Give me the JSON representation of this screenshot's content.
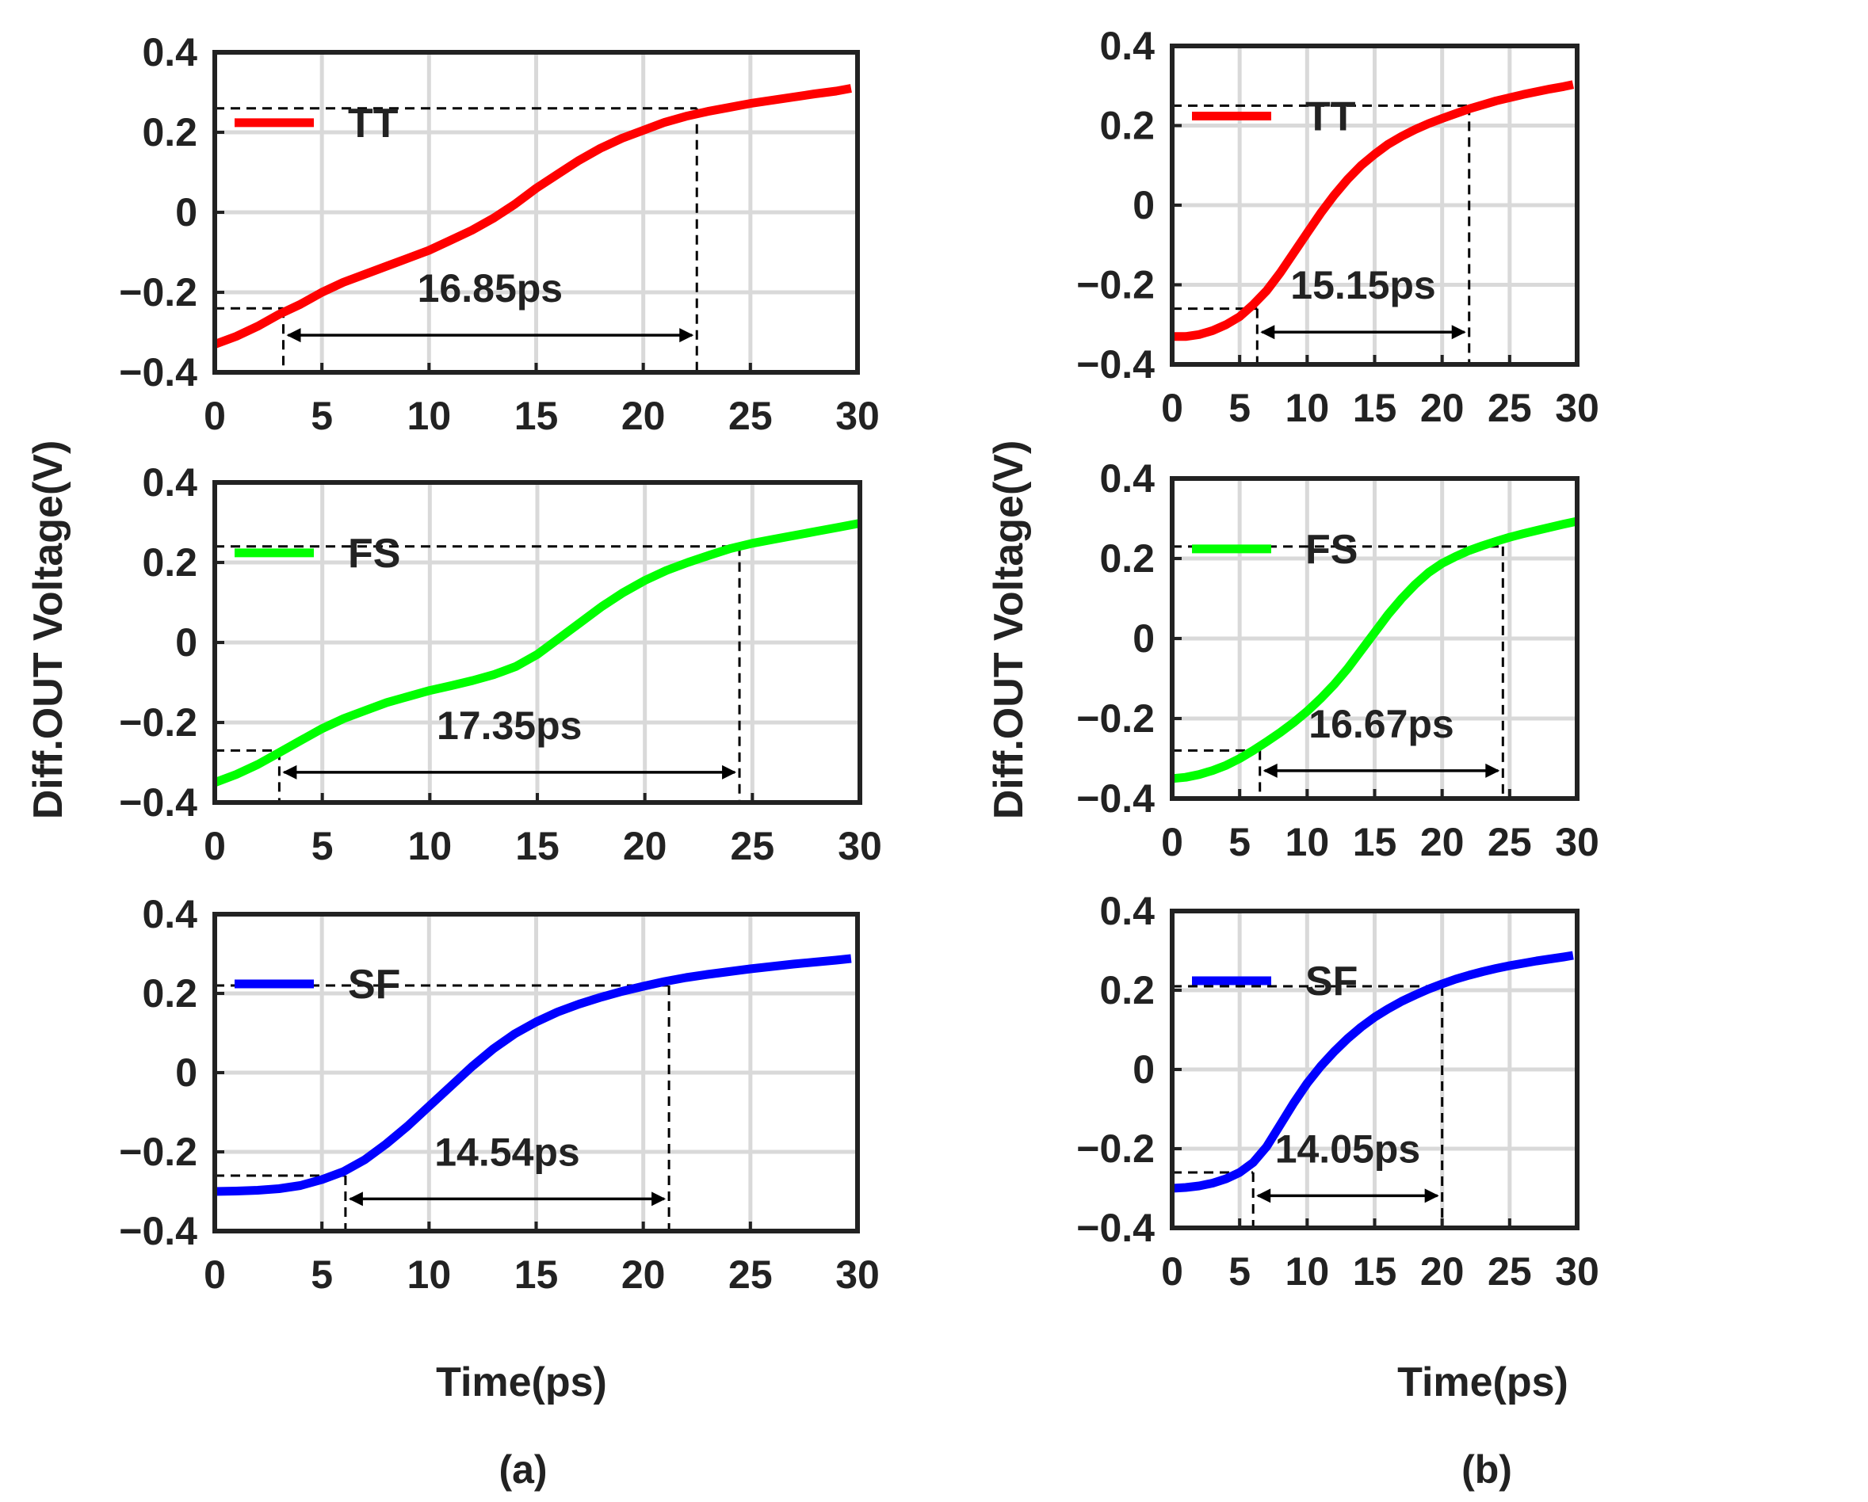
{
  "figure": {
    "ylabel": "Diff.OUT Voltage(V)",
    "xlabel": "Time(ps)",
    "colors": {
      "TT": "#ff0000",
      "FS": "#00ff00",
      "SF": "#0000ff",
      "axis": "#222222",
      "grid": "#d9d9d9"
    }
  },
  "chart_data": [
    {
      "type": "line",
      "group": "(a)",
      "corner": "TT",
      "legend": "TT",
      "xlim": [
        0,
        30
      ],
      "ylim": [
        -0.4,
        0.4
      ],
      "xticks": [
        "0",
        "5",
        "10",
        "15",
        "20",
        "25",
        "30"
      ],
      "yticks": [
        "−0.4",
        "−0.2",
        "0",
        "0.2",
        "0.4"
      ],
      "annotation": {
        "label": "16.85ps",
        "t_start": 3.2,
        "t_end": 22.5,
        "v_low": -0.24,
        "v_high": 0.26
      },
      "x": [
        0,
        1,
        2,
        3,
        4,
        5,
        6,
        7,
        8,
        9,
        10,
        11,
        12,
        13,
        14,
        15,
        16,
        17,
        18,
        19,
        20,
        21,
        22,
        23,
        24,
        25,
        26,
        27,
        28,
        29,
        29.7
      ],
      "y": [
        -0.33,
        -0.31,
        -0.285,
        -0.255,
        -0.23,
        -0.2,
        -0.175,
        -0.155,
        -0.135,
        -0.115,
        -0.095,
        -0.07,
        -0.045,
        -0.015,
        0.02,
        0.06,
        0.095,
        0.13,
        0.16,
        0.185,
        0.205,
        0.225,
        0.24,
        0.252,
        0.262,
        0.272,
        0.28,
        0.288,
        0.296,
        0.303,
        0.31
      ]
    },
    {
      "type": "line",
      "group": "(a)",
      "corner": "FS",
      "legend": "FS",
      "xlim": [
        0,
        30
      ],
      "ylim": [
        -0.4,
        0.4
      ],
      "xticks": [
        "0",
        "5",
        "10",
        "15",
        "20",
        "25",
        "30"
      ],
      "yticks": [
        "−0.4",
        "−0.2",
        "0",
        "0.2",
        "0.4"
      ],
      "annotation": {
        "label": "17.35ps",
        "t_start": 3.0,
        "t_end": 24.4,
        "v_low": -0.27,
        "v_high": 0.24
      },
      "x": [
        0,
        1,
        2,
        3,
        4,
        5,
        6,
        7,
        8,
        9,
        10,
        11,
        12,
        13,
        14,
        15,
        16,
        17,
        18,
        19,
        20,
        21,
        22,
        23,
        24,
        25,
        26,
        27,
        28,
        29,
        30
      ],
      "y": [
        -0.35,
        -0.33,
        -0.305,
        -0.275,
        -0.245,
        -0.215,
        -0.19,
        -0.17,
        -0.15,
        -0.135,
        -0.12,
        -0.108,
        -0.095,
        -0.08,
        -0.06,
        -0.03,
        0.01,
        0.05,
        0.09,
        0.125,
        0.155,
        0.18,
        0.2,
        0.218,
        0.235,
        0.248,
        0.258,
        0.268,
        0.278,
        0.288,
        0.298
      ]
    },
    {
      "type": "line",
      "group": "(a)",
      "corner": "SF",
      "legend": "SF",
      "xlim": [
        0,
        30
      ],
      "ylim": [
        -0.4,
        0.4
      ],
      "xticks": [
        "0",
        "5",
        "10",
        "15",
        "20",
        "25",
        "30"
      ],
      "yticks": [
        "−0.4",
        "−0.2",
        "0",
        "0.2",
        "0.4"
      ],
      "annotation": {
        "label": "14.54ps",
        "t_start": 6.1,
        "t_end": 21.2,
        "v_low": -0.26,
        "v_high": 0.22
      },
      "x": [
        0,
        1,
        2,
        3,
        4,
        5,
        6,
        7,
        8,
        9,
        10,
        11,
        12,
        13,
        14,
        15,
        16,
        17,
        18,
        19,
        20,
        21,
        22,
        23,
        24,
        25,
        26,
        27,
        28,
        29,
        29.7
      ],
      "y": [
        -0.3,
        -0.299,
        -0.297,
        -0.293,
        -0.285,
        -0.27,
        -0.25,
        -0.22,
        -0.18,
        -0.135,
        -0.085,
        -0.035,
        0.015,
        0.06,
        0.098,
        0.128,
        0.153,
        0.173,
        0.19,
        0.205,
        0.218,
        0.23,
        0.24,
        0.248,
        0.255,
        0.262,
        0.268,
        0.274,
        0.279,
        0.284,
        0.288
      ]
    },
    {
      "type": "line",
      "group": "(b)",
      "corner": "TT",
      "legend": "TT",
      "xlim": [
        0,
        30
      ],
      "ylim": [
        -0.4,
        0.4
      ],
      "xticks": [
        "0",
        "5",
        "10",
        "15",
        "20",
        "25",
        "30"
      ],
      "yticks": [
        "−0.4",
        "−0.2",
        "0",
        "0.2",
        "0.4"
      ],
      "annotation": {
        "label": "15.15ps",
        "t_start": 6.3,
        "t_end": 22.0,
        "v_low": -0.26,
        "v_high": 0.25
      },
      "x": [
        0,
        1,
        2,
        3,
        4,
        5,
        6,
        7,
        8,
        9,
        10,
        11,
        12,
        13,
        14,
        15,
        16,
        17,
        18,
        19,
        20,
        21,
        22,
        23,
        24,
        25,
        26,
        27,
        28,
        29,
        29.7
      ],
      "y": [
        -0.33,
        -0.33,
        -0.325,
        -0.315,
        -0.3,
        -0.28,
        -0.25,
        -0.215,
        -0.17,
        -0.12,
        -0.07,
        -0.02,
        0.025,
        0.065,
        0.1,
        0.128,
        0.153,
        0.173,
        0.19,
        0.205,
        0.218,
        0.23,
        0.242,
        0.252,
        0.262,
        0.27,
        0.278,
        0.285,
        0.292,
        0.298,
        0.303
      ]
    },
    {
      "type": "line",
      "group": "(b)",
      "corner": "FS",
      "legend": "FS",
      "xlim": [
        0,
        30
      ],
      "ylim": [
        -0.4,
        0.4
      ],
      "xticks": [
        "0",
        "5",
        "10",
        "15",
        "20",
        "25",
        "30"
      ],
      "yticks": [
        "−0.4",
        "−0.2",
        "0",
        "0.2",
        "0.4"
      ],
      "annotation": {
        "label": "16.67ps",
        "t_start": 6.5,
        "t_end": 24.5,
        "v_low": -0.28,
        "v_high": 0.23
      },
      "x": [
        0,
        1,
        2,
        3,
        4,
        5,
        6,
        7,
        8,
        9,
        10,
        11,
        12,
        13,
        14,
        15,
        16,
        17,
        18,
        19,
        20,
        21,
        22,
        23,
        24,
        25,
        26,
        27,
        28,
        29,
        30
      ],
      "y": [
        -0.35,
        -0.347,
        -0.34,
        -0.33,
        -0.317,
        -0.3,
        -0.28,
        -0.258,
        -0.235,
        -0.21,
        -0.182,
        -0.15,
        -0.115,
        -0.075,
        -0.03,
        0.015,
        0.06,
        0.1,
        0.135,
        0.165,
        0.188,
        0.205,
        0.22,
        0.232,
        0.243,
        0.253,
        0.262,
        0.27,
        0.278,
        0.286,
        0.293
      ]
    },
    {
      "type": "line",
      "group": "(b)",
      "corner": "SF",
      "legend": "SF",
      "xlim": [
        0,
        30
      ],
      "ylim": [
        -0.4,
        0.4
      ],
      "xticks": [
        "0",
        "5",
        "10",
        "15",
        "20",
        "25",
        "30"
      ],
      "yticks": [
        "−0.4",
        "−0.2",
        "0",
        "0.2",
        "0.4"
      ],
      "annotation": {
        "label": "14.05ps",
        "t_start": 6.0,
        "t_end": 20.0,
        "v_low": -0.26,
        "v_high": 0.21
      },
      "x": [
        0,
        1,
        2,
        3,
        4,
        5,
        6,
        7,
        8,
        9,
        10,
        11,
        12,
        13,
        14,
        15,
        16,
        17,
        18,
        19,
        20,
        21,
        22,
        23,
        24,
        25,
        26,
        27,
        28,
        29,
        29.7
      ],
      "y": [
        -0.3,
        -0.298,
        -0.294,
        -0.287,
        -0.276,
        -0.26,
        -0.235,
        -0.195,
        -0.14,
        -0.085,
        -0.035,
        0.008,
        0.045,
        0.078,
        0.107,
        0.132,
        0.153,
        0.172,
        0.188,
        0.203,
        0.216,
        0.228,
        0.238,
        0.247,
        0.255,
        0.262,
        0.268,
        0.274,
        0.279,
        0.284,
        0.288
      ]
    }
  ],
  "panels": [
    {
      "label": "(a)"
    },
    {
      "label": "(b)"
    }
  ]
}
